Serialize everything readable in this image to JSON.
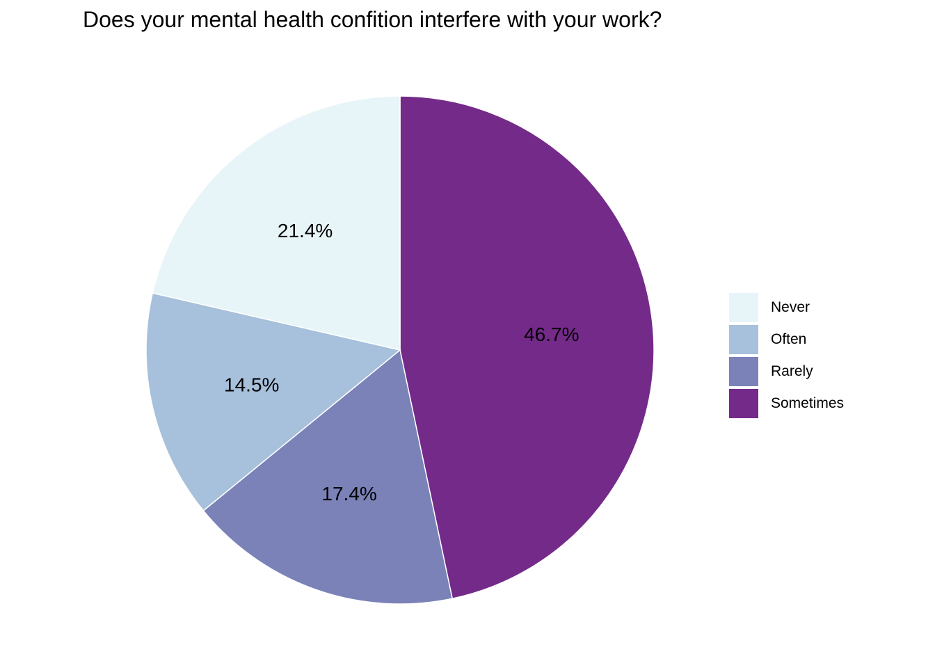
{
  "chart_data": {
    "type": "pie",
    "title": "Does your mental health confition interfere with your work?",
    "categories": [
      "Never",
      "Often",
      "Rarely",
      "Sometimes"
    ],
    "values": [
      21.4,
      14.5,
      17.4,
      46.7
    ],
    "labels": [
      "21.4%",
      "14.5%",
      "17.4%",
      "46.7%"
    ],
    "colors": [
      "#E8F5F8",
      "#A7C0DB",
      "#7A82B8",
      "#742A89"
    ],
    "start": "12 o'clock",
    "direction": "clockwise",
    "first_slice": "Sometimes",
    "legend_position": "right"
  }
}
